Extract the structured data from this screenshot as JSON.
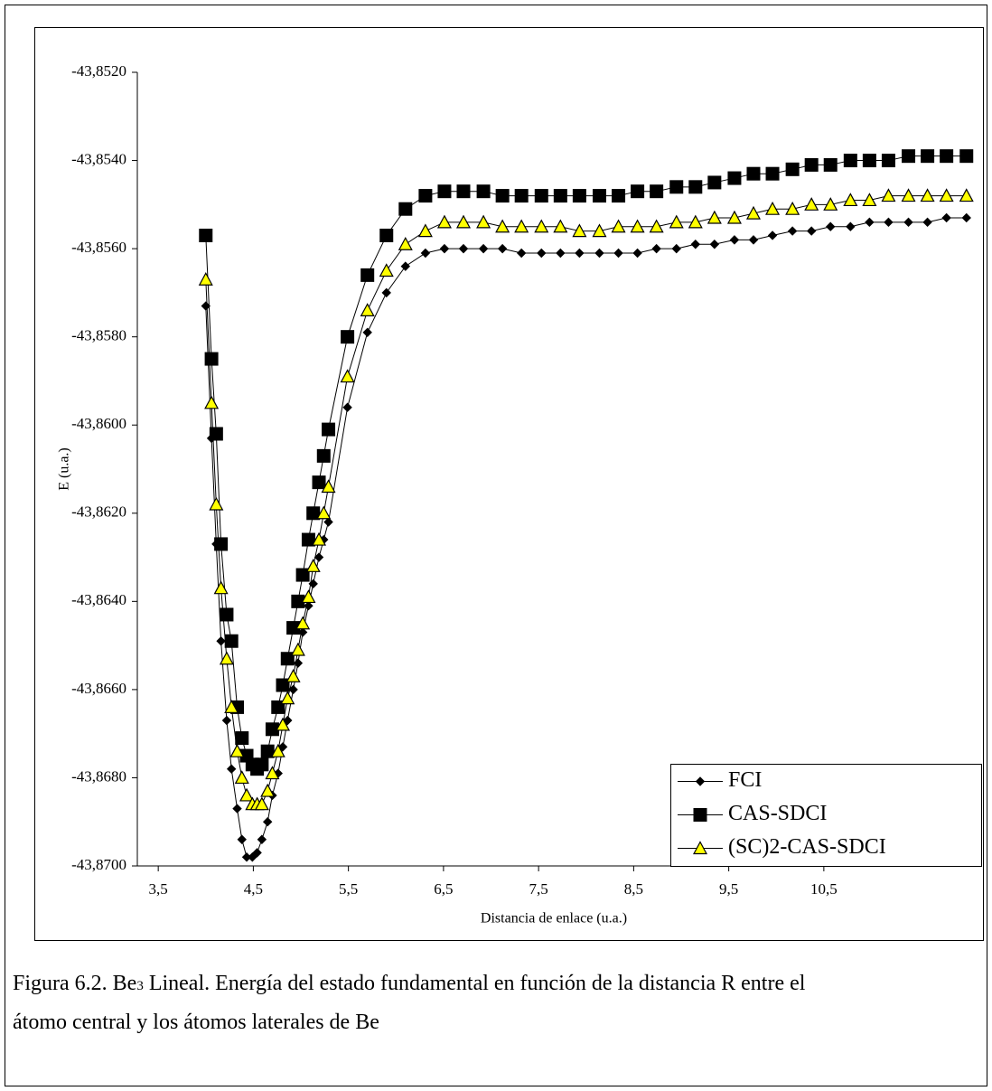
{
  "chart_data": {
    "type": "line",
    "x_label": "Distancia de enlace (u.a.)",
    "y_label": "E (u.a.)",
    "x": [
      4.0,
      4.06,
      4.11,
      4.16,
      4.22,
      4.27,
      4.33,
      4.38,
      4.43,
      4.49,
      4.54,
      4.59,
      4.65,
      4.7,
      4.76,
      4.81,
      4.86,
      4.92,
      4.97,
      5.02,
      5.08,
      5.13,
      5.19,
      5.24,
      5.29,
      5.49,
      5.7,
      5.9,
      6.1,
      6.31,
      6.51,
      6.71,
      6.92,
      7.12,
      7.32,
      7.53,
      7.73,
      7.93,
      8.14,
      8.34,
      8.54,
      8.74,
      8.95,
      9.15,
      9.35,
      9.56,
      9.76,
      9.96,
      10.17,
      10.37,
      10.57,
      10.78,
      10.98,
      11.18,
      11.39,
      11.59,
      11.79,
      12.0
    ],
    "series": [
      {
        "name": "FCI",
        "color": "#000000",
        "marker": "diamond",
        "marker_fill": "#000000",
        "values": [
          -43.8573,
          -43.8603,
          -43.8627,
          -43.8649,
          -43.8667,
          -43.8678,
          -43.8687,
          -43.8694,
          -43.8698,
          -43.8698,
          -43.8697,
          -43.8694,
          -43.869,
          -43.8684,
          -43.8679,
          -43.8673,
          -43.8667,
          -43.866,
          -43.8654,
          -43.8647,
          -43.8641,
          -43.8636,
          -43.863,
          -43.8626,
          -43.8622,
          -43.8596,
          -43.8579,
          -43.857,
          -43.8564,
          -43.8561,
          -43.856,
          -43.856,
          -43.856,
          -43.856,
          -43.8561,
          -43.8561,
          -43.8561,
          -43.8561,
          -43.8561,
          -43.8561,
          -43.8561,
          -43.856,
          -43.856,
          -43.8559,
          -43.8559,
          -43.8558,
          -43.8558,
          -43.8557,
          -43.8556,
          -43.8556,
          -43.8555,
          -43.8555,
          -43.8554,
          -43.8554,
          -43.8554,
          -43.8554,
          -43.8553,
          -43.8553
        ]
      },
      {
        "name": "CAS-SDCI",
        "color": "#000000",
        "marker": "square",
        "marker_fill": "#000000",
        "values": [
          -43.8557,
          -43.8585,
          -43.8602,
          -43.8627,
          -43.8643,
          -43.8649,
          -43.8664,
          -43.8671,
          -43.8675,
          -43.8677,
          -43.8678,
          -43.8677,
          -43.8674,
          -43.8669,
          -43.8664,
          -43.8659,
          -43.8653,
          -43.8646,
          -43.864,
          -43.8634,
          -43.8626,
          -43.862,
          -43.8613,
          -43.8607,
          -43.8601,
          -43.858,
          -43.8566,
          -43.8557,
          -43.8551,
          -43.8548,
          -43.8547,
          -43.8547,
          -43.8547,
          -43.8548,
          -43.8548,
          -43.8548,
          -43.8548,
          -43.8548,
          -43.8548,
          -43.8548,
          -43.8547,
          -43.8547,
          -43.8546,
          -43.8546,
          -43.8545,
          -43.8544,
          -43.8543,
          -43.8543,
          -43.8542,
          -43.8541,
          -43.8541,
          -43.854,
          -43.854,
          -43.854,
          -43.8539,
          -43.8539,
          -43.8539,
          -43.8539
        ]
      },
      {
        "name": "(SC)2-CAS-SDCI",
        "color": "#000000",
        "marker": "triangle",
        "marker_fill": "#ffff00",
        "values": [
          -43.8567,
          -43.8595,
          -43.8618,
          -43.8637,
          -43.8653,
          -43.8664,
          -43.8674,
          -43.868,
          -43.8684,
          -43.8686,
          -43.8686,
          -43.8686,
          -43.8683,
          -43.8679,
          -43.8674,
          -43.8668,
          -43.8662,
          -43.8657,
          -43.8651,
          -43.8645,
          -43.8639,
          -43.8632,
          -43.8626,
          -43.862,
          -43.8614,
          -43.8589,
          -43.8574,
          -43.8565,
          -43.8559,
          -43.8556,
          -43.8554,
          -43.8554,
          -43.8554,
          -43.8555,
          -43.8555,
          -43.8555,
          -43.8555,
          -43.8556,
          -43.8556,
          -43.8555,
          -43.8555,
          -43.8555,
          -43.8554,
          -43.8554,
          -43.8553,
          -43.8553,
          -43.8552,
          -43.8551,
          -43.8551,
          -43.855,
          -43.855,
          -43.8549,
          -43.8549,
          -43.8548,
          -43.8548,
          -43.8548,
          -43.8548,
          -43.8548
        ]
      }
    ],
    "xlim": [
      3.28,
      12.05
    ],
    "xticks": [
      {
        "value": 3.5,
        "label": "3,5"
      },
      {
        "value": 4.5,
        "label": "4,5"
      },
      {
        "value": 5.5,
        "label": "5,5"
      },
      {
        "value": 6.5,
        "label": "6,5"
      },
      {
        "value": 7.5,
        "label": "7,5"
      },
      {
        "value": 8.5,
        "label": "8,5"
      },
      {
        "value": 9.5,
        "label": "9,5"
      },
      {
        "value": 10.5,
        "label": "10,5"
      }
    ],
    "ylim": [
      -43.87,
      -43.852
    ],
    "yticks": [
      {
        "value": -43.852,
        "label": "-43,8520"
      },
      {
        "value": -43.854,
        "label": "-43,8540"
      },
      {
        "value": -43.856,
        "label": "-43,8560"
      },
      {
        "value": -43.858,
        "label": "-43,8580"
      },
      {
        "value": -43.86,
        "label": "-43,8600"
      },
      {
        "value": -43.862,
        "label": "-43,8620"
      },
      {
        "value": -43.864,
        "label": "-43,8640"
      },
      {
        "value": -43.866,
        "label": "-43,8660"
      },
      {
        "value": -43.868,
        "label": "-43,8680"
      },
      {
        "value": -43.87,
        "label": "-43,8700"
      }
    ],
    "grid": false,
    "legend": "lower right"
  },
  "caption": {
    "line1_start": "Figura 6.2. Be",
    "subscript": "3",
    "line1_end": " Lineal. Energía del estado fundamental en función de la distancia R entre el",
    "line2": "átomo central y los átomos laterales de Be"
  }
}
